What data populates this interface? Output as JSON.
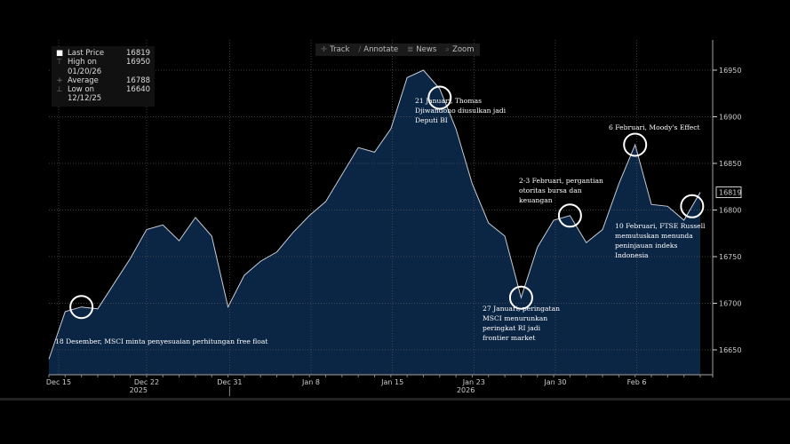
{
  "legend": [
    {
      "icon": "last-price-icon",
      "label": "Last Price",
      "value": "16819"
    },
    {
      "icon": "high-icon",
      "label": "High on 01/20/26",
      "value": "16950"
    },
    {
      "icon": "average-icon",
      "label": "Average",
      "value": "16788"
    },
    {
      "icon": "low-icon",
      "label": "Low on 12/12/25",
      "value": "16640"
    }
  ],
  "toolbar": {
    "track": "Track",
    "annotate": "Annotate",
    "news": "News",
    "zoom": "Zoom"
  },
  "annotations": [
    {
      "text": "18 Desember, MSCI minta penyesuaian perhitungan free float",
      "index": 2
    },
    {
      "text": "21 Januari, Thomas Djiwandono diusulkan jadi Deputi BI",
      "index": 24
    },
    {
      "text": "27 Januari, peringatan MSCI menurunkan peringkat RI jadi frontier market",
      "index": 29
    },
    {
      "text": "2-3 Februari, pergantian otoritas bursa dan keuangan",
      "index": 32
    },
    {
      "text": "6 Februari, Moody's Effect",
      "index": 36
    },
    {
      "text": "10 Februari, FTSE Russell memutuskan menunda peninjauan indeks Indonesia",
      "index": 39.5
    }
  ],
  "colors": {
    "fill": "#0b2545",
    "line": "#c8ccd4",
    "background": "#000000"
  },
  "chart_data": {
    "type": "area",
    "title": "",
    "values": [
      16640,
      16691,
      16696,
      16694,
      16721,
      16748,
      16779,
      16784,
      16767,
      16792,
      16772,
      16696,
      16730,
      16745,
      16755,
      16776,
      16794,
      16809,
      16838,
      16867,
      16862,
      16887,
      16942,
      16950,
      16930,
      16887,
      16828,
      16786,
      16772,
      16706,
      16760,
      16789,
      16794,
      16765,
      16779,
      16828,
      16870,
      16806,
      16804,
      16789,
      16819
    ],
    "ylim": [
      16620,
      16975
    ],
    "yticks": [
      16650,
      16700,
      16750,
      16800,
      16850,
      16900,
      16950
    ],
    "last_value": "16819",
    "xticks": [
      {
        "label": "Dec 15",
        "pos": 0.6
      },
      {
        "label": "Dec 22",
        "pos": 6.0
      },
      {
        "label": "Dec 31",
        "pos": 11.1
      },
      {
        "label": "Jan 8",
        "pos": 16.1
      },
      {
        "label": "Jan 15",
        "pos": 21.1
      },
      {
        "label": "Jan 23",
        "pos": 26.1
      },
      {
        "label": "Jan 30",
        "pos": 31.1
      },
      {
        "label": "Feb 6",
        "pos": 36.1
      }
    ],
    "years": [
      {
        "label": "2025",
        "pos": 5.5
      },
      {
        "label": "2026",
        "pos": 25.6
      }
    ],
    "legend_placement": "top-left"
  }
}
